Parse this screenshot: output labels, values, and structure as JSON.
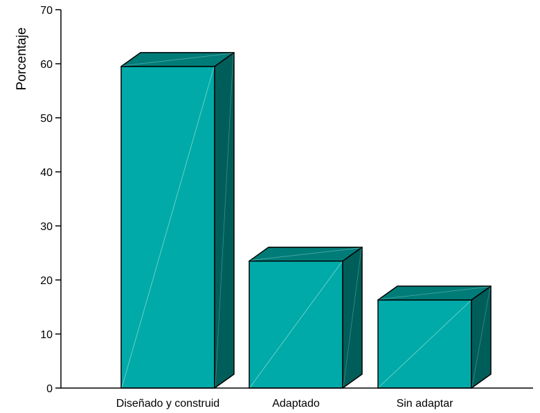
{
  "chart_data": {
    "type": "bar",
    "style": "3d",
    "categories": [
      "Diseñado y construid",
      "Adaptado",
      "Sin adaptar"
    ],
    "values": [
      59.5,
      23.5,
      16.3
    ],
    "ylabel": "Porcentaje",
    "xlabel": "",
    "ylim": [
      0,
      70
    ],
    "yticks": [
      0,
      10,
      20,
      30,
      40,
      50,
      60,
      70
    ],
    "tick_labels": [
      "0",
      "10",
      "20",
      "30",
      "40",
      "50",
      "60",
      "70"
    ],
    "grid": false,
    "legend": "none",
    "colors": {
      "front": "#00aaa8",
      "top": "#007c78",
      "side": "#005e5a",
      "outline": "#000000"
    }
  }
}
